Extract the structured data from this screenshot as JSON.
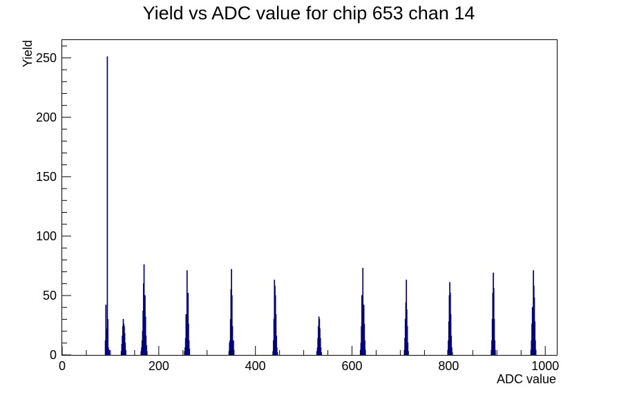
{
  "chart_data": {
    "type": "bar",
    "title": "Yield vs ADC value for chip 653 chan 14",
    "xlabel": "ADC value",
    "ylabel": "Yield",
    "xlim": [
      0,
      1024
    ],
    "ylim": [
      0,
      265
    ],
    "grid": false,
    "legend": "none",
    "x_ticks": [
      0,
      200,
      400,
      600,
      800,
      1000
    ],
    "x_tick_labels": [
      "0",
      "200",
      "400",
      "600",
      "800",
      "1000"
    ],
    "y_ticks": [
      0,
      50,
      100,
      150,
      200,
      250
    ],
    "y_tick_labels": [
      "0",
      "50",
      "100",
      "150",
      "200",
      "250"
    ],
    "series_color": "#000080",
    "bins": [
      {
        "x": 89,
        "y": 12
      },
      {
        "x": 90,
        "y": 42
      },
      {
        "x": 91,
        "y": 22
      },
      {
        "x": 92,
        "y": 8
      },
      {
        "x": 93,
        "y": 251
      },
      {
        "x": 94,
        "y": 30
      },
      {
        "x": 95,
        "y": 6
      },
      {
        "x": 97,
        "y": 4
      },
      {
        "x": 122,
        "y": 3
      },
      {
        "x": 123,
        "y": 9
      },
      {
        "x": 124,
        "y": 16
      },
      {
        "x": 125,
        "y": 24
      },
      {
        "x": 126,
        "y": 30
      },
      {
        "x": 127,
        "y": 26
      },
      {
        "x": 128,
        "y": 24
      },
      {
        "x": 129,
        "y": 18
      },
      {
        "x": 130,
        "y": 10
      },
      {
        "x": 131,
        "y": 4
      },
      {
        "x": 163,
        "y": 3
      },
      {
        "x": 164,
        "y": 6
      },
      {
        "x": 165,
        "y": 12
      },
      {
        "x": 166,
        "y": 20
      },
      {
        "x": 167,
        "y": 37
      },
      {
        "x": 168,
        "y": 60
      },
      {
        "x": 169,
        "y": 76
      },
      {
        "x": 170,
        "y": 40
      },
      {
        "x": 171,
        "y": 50
      },
      {
        "x": 172,
        "y": 32
      },
      {
        "x": 173,
        "y": 16
      },
      {
        "x": 174,
        "y": 8
      },
      {
        "x": 175,
        "y": 3
      },
      {
        "x": 253,
        "y": 3
      },
      {
        "x": 254,
        "y": 6
      },
      {
        "x": 255,
        "y": 14
      },
      {
        "x": 256,
        "y": 34
      },
      {
        "x": 257,
        "y": 34
      },
      {
        "x": 258,
        "y": 71
      },
      {
        "x": 259,
        "y": 40
      },
      {
        "x": 260,
        "y": 52
      },
      {
        "x": 261,
        "y": 26
      },
      {
        "x": 262,
        "y": 12
      },
      {
        "x": 263,
        "y": 5
      },
      {
        "x": 345,
        "y": 3
      },
      {
        "x": 346,
        "y": 10
      },
      {
        "x": 347,
        "y": 12
      },
      {
        "x": 348,
        "y": 30
      },
      {
        "x": 349,
        "y": 55
      },
      {
        "x": 350,
        "y": 72
      },
      {
        "x": 351,
        "y": 50
      },
      {
        "x": 352,
        "y": 24
      },
      {
        "x": 353,
        "y": 10
      },
      {
        "x": 354,
        "y": 12
      },
      {
        "x": 355,
        "y": 4
      },
      {
        "x": 436,
        "y": 3
      },
      {
        "x": 437,
        "y": 12
      },
      {
        "x": 438,
        "y": 30
      },
      {
        "x": 439,
        "y": 63
      },
      {
        "x": 440,
        "y": 58
      },
      {
        "x": 441,
        "y": 50
      },
      {
        "x": 442,
        "y": 34
      },
      {
        "x": 443,
        "y": 16
      },
      {
        "x": 444,
        "y": 6
      },
      {
        "x": 445,
        "y": 2
      },
      {
        "x": 527,
        "y": 3
      },
      {
        "x": 528,
        "y": 6
      },
      {
        "x": 529,
        "y": 14
      },
      {
        "x": 530,
        "y": 24
      },
      {
        "x": 531,
        "y": 32
      },
      {
        "x": 532,
        "y": 30
      },
      {
        "x": 533,
        "y": 22
      },
      {
        "x": 534,
        "y": 14
      },
      {
        "x": 535,
        "y": 6
      },
      {
        "x": 536,
        "y": 2
      },
      {
        "x": 617,
        "y": 4
      },
      {
        "x": 618,
        "y": 10
      },
      {
        "x": 619,
        "y": 24
      },
      {
        "x": 620,
        "y": 50
      },
      {
        "x": 621,
        "y": 45
      },
      {
        "x": 622,
        "y": 73
      },
      {
        "x": 623,
        "y": 38
      },
      {
        "x": 624,
        "y": 42
      },
      {
        "x": 625,
        "y": 26
      },
      {
        "x": 626,
        "y": 12
      },
      {
        "x": 627,
        "y": 4
      },
      {
        "x": 708,
        "y": 4
      },
      {
        "x": 709,
        "y": 14
      },
      {
        "x": 710,
        "y": 30
      },
      {
        "x": 711,
        "y": 44
      },
      {
        "x": 712,
        "y": 63
      },
      {
        "x": 713,
        "y": 38
      },
      {
        "x": 714,
        "y": 24
      },
      {
        "x": 715,
        "y": 10
      },
      {
        "x": 716,
        "y": 3
      },
      {
        "x": 798,
        "y": 4
      },
      {
        "x": 799,
        "y": 12
      },
      {
        "x": 800,
        "y": 28
      },
      {
        "x": 801,
        "y": 50
      },
      {
        "x": 802,
        "y": 61
      },
      {
        "x": 803,
        "y": 52
      },
      {
        "x": 804,
        "y": 34
      },
      {
        "x": 805,
        "y": 16
      },
      {
        "x": 806,
        "y": 6
      },
      {
        "x": 807,
        "y": 2
      },
      {
        "x": 888,
        "y": 4
      },
      {
        "x": 889,
        "y": 12
      },
      {
        "x": 890,
        "y": 30
      },
      {
        "x": 891,
        "y": 52
      },
      {
        "x": 892,
        "y": 69
      },
      {
        "x": 893,
        "y": 56
      },
      {
        "x": 894,
        "y": 30
      },
      {
        "x": 895,
        "y": 12
      },
      {
        "x": 896,
        "y": 4
      },
      {
        "x": 970,
        "y": 4
      },
      {
        "x": 971,
        "y": 12
      },
      {
        "x": 972,
        "y": 26
      },
      {
        "x": 973,
        "y": 40
      },
      {
        "x": 974,
        "y": 36
      },
      {
        "x": 975,
        "y": 71
      },
      {
        "x": 976,
        "y": 58
      },
      {
        "x": 977,
        "y": 48
      },
      {
        "x": 978,
        "y": 28
      },
      {
        "x": 979,
        "y": 12
      },
      {
        "x": 980,
        "y": 4
      }
    ]
  }
}
